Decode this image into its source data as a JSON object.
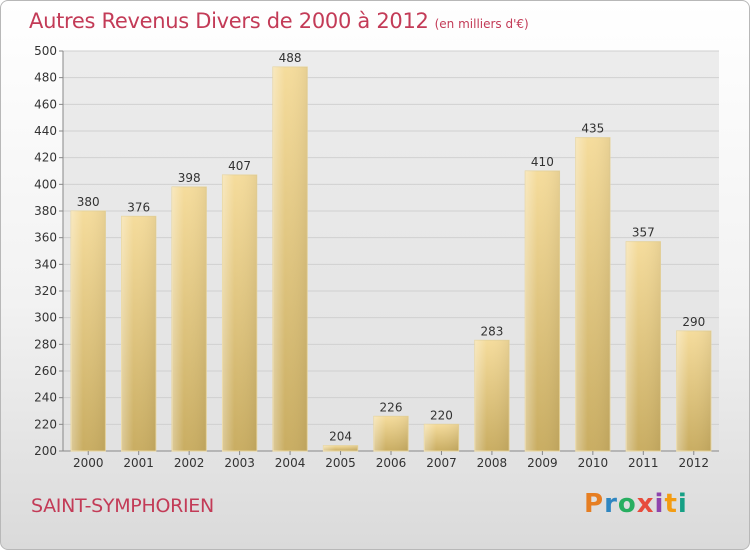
{
  "header": {
    "title": "Autres Revenus Divers de 2000 à 2012",
    "unit": "(en milliers d'€)"
  },
  "footer": {
    "commune": "SAINT-SYMPHORIEN",
    "logo_text": "Proxiti",
    "logo_colors": [
      "#e67e22",
      "#2e86c1",
      "#27ae60",
      "#e74c3c",
      "#8e44ad",
      "#f39c12",
      "#16a085"
    ]
  },
  "colors": {
    "bar_top": "#f5dc9c",
    "bar_bottom": "#c9ad62",
    "title": "#c33b57",
    "grid": "#d0d0d0"
  },
  "chart_data": {
    "type": "bar",
    "title": "Autres Revenus Divers de 2000 à 2012",
    "xlabel": "",
    "ylabel": "",
    "categories": [
      "2000",
      "2001",
      "2002",
      "2003",
      "2004",
      "2005",
      "2006",
      "2007",
      "2008",
      "2009",
      "2010",
      "2011",
      "2012"
    ],
    "values": [
      380,
      376,
      398,
      407,
      488,
      204,
      226,
      220,
      283,
      410,
      435,
      357,
      290
    ],
    "ylim": [
      200,
      500
    ],
    "yticks": [
      200,
      220,
      240,
      260,
      280,
      300,
      320,
      340,
      360,
      380,
      400,
      420,
      440,
      460,
      480,
      500
    ],
    "grid": true
  }
}
